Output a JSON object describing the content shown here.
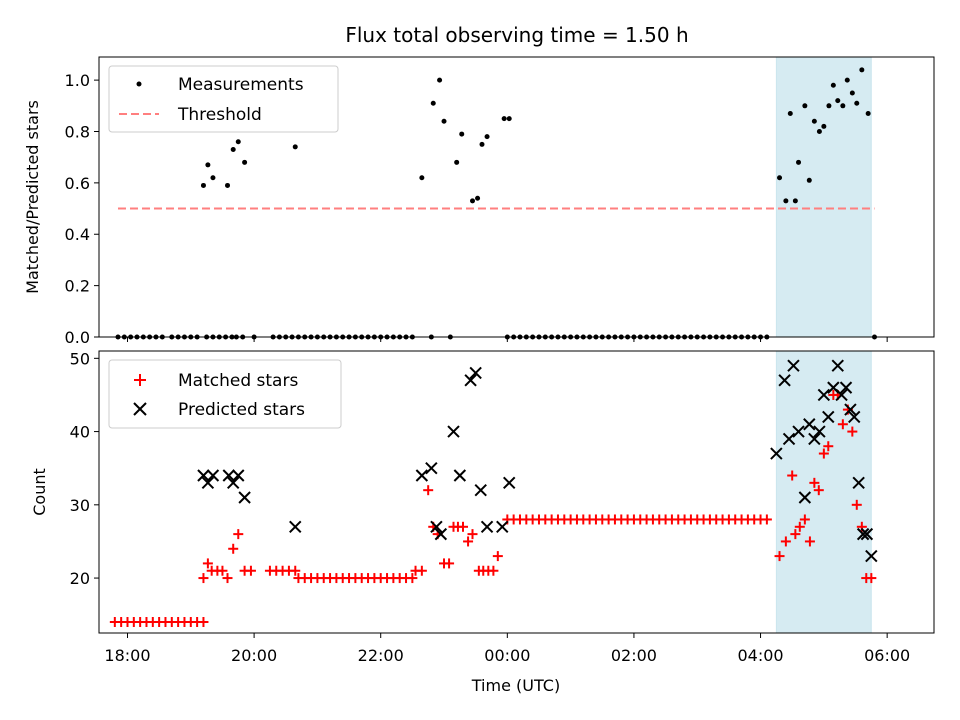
{
  "chart_data": {
    "type": "scatter",
    "title": "Flux total observing time = 1.50 h",
    "xlabel": "Time (UTC)",
    "x_unit": "hours since 18:00 UTC",
    "xlim": [
      -0.45,
      12.74
    ],
    "xticks": [
      {
        "label": "18:00",
        "value": 0
      },
      {
        "label": "20:00",
        "value": 2
      },
      {
        "label": "22:00",
        "value": 4
      },
      {
        "label": "00:00",
        "value": 6
      },
      {
        "label": "02:00",
        "value": 8
      },
      {
        "label": "04:00",
        "value": 10
      },
      {
        "label": "06:00",
        "value": 12
      }
    ],
    "highlight_span": {
      "x_start": 10.25,
      "x_end": 11.75,
      "color": "#add8e6"
    },
    "top": {
      "ylabel": "Matched/Predicted stars",
      "ylim": [
        0,
        1.09
      ],
      "yticks": [
        "0.0",
        "0.2",
        "0.4",
        "0.6",
        "0.8",
        "1.0"
      ],
      "legend": {
        "position": "upper left",
        "measurements_label": "Measurements",
        "threshold_label": "Threshold"
      },
      "threshold": {
        "value": 0.5,
        "x_start": -0.15,
        "x_end": 11.8,
        "color": "#ff7f7f"
      },
      "zero_points_x": [
        -0.15,
        -0.05,
        0.05,
        0.15,
        0.25,
        0.35,
        0.45,
        0.55,
        0.7,
        0.8,
        0.9,
        1.0,
        1.1,
        1.25,
        1.35,
        1.45,
        1.55,
        1.65,
        1.72,
        1.82,
        2.0,
        2.3,
        2.4,
        2.5,
        2.6,
        2.7,
        2.8,
        2.9,
        3.0,
        3.1,
        3.2,
        3.3,
        3.4,
        3.5,
        3.6,
        3.7,
        3.8,
        3.9,
        4.0,
        4.1,
        4.2,
        4.3,
        4.4,
        4.5,
        4.8,
        5.1,
        6.0,
        6.1,
        6.2,
        6.3,
        6.4,
        6.5,
        6.6,
        6.7,
        6.8,
        6.9,
        7.0,
        7.1,
        7.2,
        7.3,
        7.4,
        7.5,
        7.6,
        7.7,
        7.8,
        7.9,
        8.0,
        8.1,
        8.2,
        8.3,
        8.4,
        8.5,
        8.6,
        8.7,
        8.8,
        8.9,
        9.0,
        9.1,
        9.2,
        9.3,
        9.4,
        9.5,
        9.6,
        9.7,
        9.8,
        9.9,
        10.0,
        10.1,
        11.8
      ],
      "points": [
        {
          "x": 1.2,
          "y": 0.59
        },
        {
          "x": 1.27,
          "y": 0.67
        },
        {
          "x": 1.35,
          "y": 0.62
        },
        {
          "x": 1.58,
          "y": 0.59
        },
        {
          "x": 1.67,
          "y": 0.73
        },
        {
          "x": 1.75,
          "y": 0.76
        },
        {
          "x": 1.85,
          "y": 0.68
        },
        {
          "x": 2.65,
          "y": 0.74
        },
        {
          "x": 4.65,
          "y": 0.62
        },
        {
          "x": 4.83,
          "y": 0.91
        },
        {
          "x": 4.93,
          "y": 1.0
        },
        {
          "x": 5.0,
          "y": 0.84
        },
        {
          "x": 5.2,
          "y": 0.68
        },
        {
          "x": 5.28,
          "y": 0.79
        },
        {
          "x": 5.45,
          "y": 0.53
        },
        {
          "x": 5.53,
          "y": 0.54
        },
        {
          "x": 5.6,
          "y": 0.75
        },
        {
          "x": 5.68,
          "y": 0.78
        },
        {
          "x": 5.95,
          "y": 0.85
        },
        {
          "x": 6.03,
          "y": 0.85
        },
        {
          "x": 10.3,
          "y": 0.62
        },
        {
          "x": 10.4,
          "y": 0.53
        },
        {
          "x": 10.47,
          "y": 0.87
        },
        {
          "x": 10.55,
          "y": 0.53
        },
        {
          "x": 10.6,
          "y": 0.68
        },
        {
          "x": 10.7,
          "y": 0.9
        },
        {
          "x": 10.77,
          "y": 0.61
        },
        {
          "x": 10.85,
          "y": 0.84
        },
        {
          "x": 10.93,
          "y": 0.8
        },
        {
          "x": 11.0,
          "y": 0.82
        },
        {
          "x": 11.08,
          "y": 0.9
        },
        {
          "x": 11.15,
          "y": 0.98
        },
        {
          "x": 11.22,
          "y": 0.92
        },
        {
          "x": 11.3,
          "y": 0.9
        },
        {
          "x": 11.37,
          "y": 1.0
        },
        {
          "x": 11.45,
          "y": 0.95
        },
        {
          "x": 11.52,
          "y": 0.91
        },
        {
          "x": 11.6,
          "y": 1.04
        },
        {
          "x": 11.7,
          "y": 0.87
        }
      ]
    },
    "bottom": {
      "ylabel": "Count",
      "ylim": [
        12.5,
        51
      ],
      "yticks": [
        {
          "label": "20",
          "value": 20
        },
        {
          "label": "30",
          "value": 30
        },
        {
          "label": "40",
          "value": 40
        },
        {
          "label": "50",
          "value": 50
        }
      ],
      "legend": {
        "position": "upper left",
        "matched_label": "Matched stars",
        "predicted_label": "Predicted stars"
      },
      "matched_color": "#ff0000",
      "predicted_color": "#000000",
      "matched_flat_segments": [
        {
          "y": 14,
          "x_from": -0.2,
          "x_to": 1.2,
          "step": 0.1
        },
        {
          "y": 21,
          "x_from": 2.25,
          "x_to": 2.65,
          "step": 0.1
        },
        {
          "y": 20,
          "x_from": 2.7,
          "x_to": 4.5,
          "step": 0.1
        },
        {
          "y": 28,
          "x_from": 6.0,
          "x_to": 10.1,
          "step": 0.1
        }
      ],
      "matched_points": [
        {
          "x": 1.2,
          "y": 20
        },
        {
          "x": 1.27,
          "y": 22
        },
        {
          "x": 1.33,
          "y": 21
        },
        {
          "x": 1.42,
          "y": 21
        },
        {
          "x": 1.5,
          "y": 21
        },
        {
          "x": 1.58,
          "y": 20
        },
        {
          "x": 1.67,
          "y": 24
        },
        {
          "x": 1.75,
          "y": 26
        },
        {
          "x": 1.85,
          "y": 21
        },
        {
          "x": 1.95,
          "y": 21
        },
        {
          "x": 4.55,
          "y": 21
        },
        {
          "x": 4.65,
          "y": 21
        },
        {
          "x": 4.75,
          "y": 32
        },
        {
          "x": 4.83,
          "y": 27
        },
        {
          "x": 4.9,
          "y": 26
        },
        {
          "x": 5.0,
          "y": 22
        },
        {
          "x": 5.08,
          "y": 22
        },
        {
          "x": 5.15,
          "y": 27
        },
        {
          "x": 5.22,
          "y": 27
        },
        {
          "x": 5.3,
          "y": 27
        },
        {
          "x": 5.38,
          "y": 25
        },
        {
          "x": 5.45,
          "y": 26
        },
        {
          "x": 5.55,
          "y": 21
        },
        {
          "x": 5.62,
          "y": 21
        },
        {
          "x": 5.7,
          "y": 21
        },
        {
          "x": 5.78,
          "y": 21
        },
        {
          "x": 5.85,
          "y": 23
        },
        {
          "x": 10.3,
          "y": 23
        },
        {
          "x": 10.4,
          "y": 25
        },
        {
          "x": 10.5,
          "y": 34
        },
        {
          "x": 10.55,
          "y": 26
        },
        {
          "x": 10.62,
          "y": 27
        },
        {
          "x": 10.7,
          "y": 28
        },
        {
          "x": 10.78,
          "y": 25
        },
        {
          "x": 10.85,
          "y": 33
        },
        {
          "x": 10.92,
          "y": 32
        },
        {
          "x": 11.0,
          "y": 37
        },
        {
          "x": 11.07,
          "y": 38
        },
        {
          "x": 11.15,
          "y": 45
        },
        {
          "x": 11.22,
          "y": 45
        },
        {
          "x": 11.3,
          "y": 41
        },
        {
          "x": 11.38,
          "y": 43
        },
        {
          "x": 11.45,
          "y": 40
        },
        {
          "x": 11.52,
          "y": 30
        },
        {
          "x": 11.6,
          "y": 27
        },
        {
          "x": 11.67,
          "y": 20
        },
        {
          "x": 11.75,
          "y": 20
        }
      ],
      "predicted_points": [
        {
          "x": 1.2,
          "y": 34
        },
        {
          "x": 1.27,
          "y": 33
        },
        {
          "x": 1.35,
          "y": 34
        },
        {
          "x": 1.6,
          "y": 34
        },
        {
          "x": 1.67,
          "y": 33
        },
        {
          "x": 1.75,
          "y": 34
        },
        {
          "x": 1.85,
          "y": 31
        },
        {
          "x": 2.65,
          "y": 27
        },
        {
          "x": 4.65,
          "y": 34
        },
        {
          "x": 4.8,
          "y": 35
        },
        {
          "x": 4.88,
          "y": 27
        },
        {
          "x": 4.95,
          "y": 26
        },
        {
          "x": 5.15,
          "y": 40
        },
        {
          "x": 5.25,
          "y": 34
        },
        {
          "x": 5.42,
          "y": 47
        },
        {
          "x": 5.5,
          "y": 48
        },
        {
          "x": 5.58,
          "y": 32
        },
        {
          "x": 5.68,
          "y": 27
        },
        {
          "x": 5.92,
          "y": 27
        },
        {
          "x": 6.03,
          "y": 33
        },
        {
          "x": 10.25,
          "y": 37
        },
        {
          "x": 10.38,
          "y": 47
        },
        {
          "x": 10.45,
          "y": 39
        },
        {
          "x": 10.52,
          "y": 49
        },
        {
          "x": 10.6,
          "y": 40
        },
        {
          "x": 10.7,
          "y": 31
        },
        {
          "x": 10.77,
          "y": 41
        },
        {
          "x": 10.85,
          "y": 39
        },
        {
          "x": 10.93,
          "y": 40
        },
        {
          "x": 11.0,
          "y": 45
        },
        {
          "x": 11.07,
          "y": 42
        },
        {
          "x": 11.15,
          "y": 46
        },
        {
          "x": 11.22,
          "y": 49
        },
        {
          "x": 11.28,
          "y": 45
        },
        {
          "x": 11.35,
          "y": 46
        },
        {
          "x": 11.42,
          "y": 43
        },
        {
          "x": 11.48,
          "y": 42
        },
        {
          "x": 11.55,
          "y": 33
        },
        {
          "x": 11.62,
          "y": 26
        },
        {
          "x": 11.68,
          "y": 26
        },
        {
          "x": 11.75,
          "y": 23
        }
      ]
    }
  }
}
